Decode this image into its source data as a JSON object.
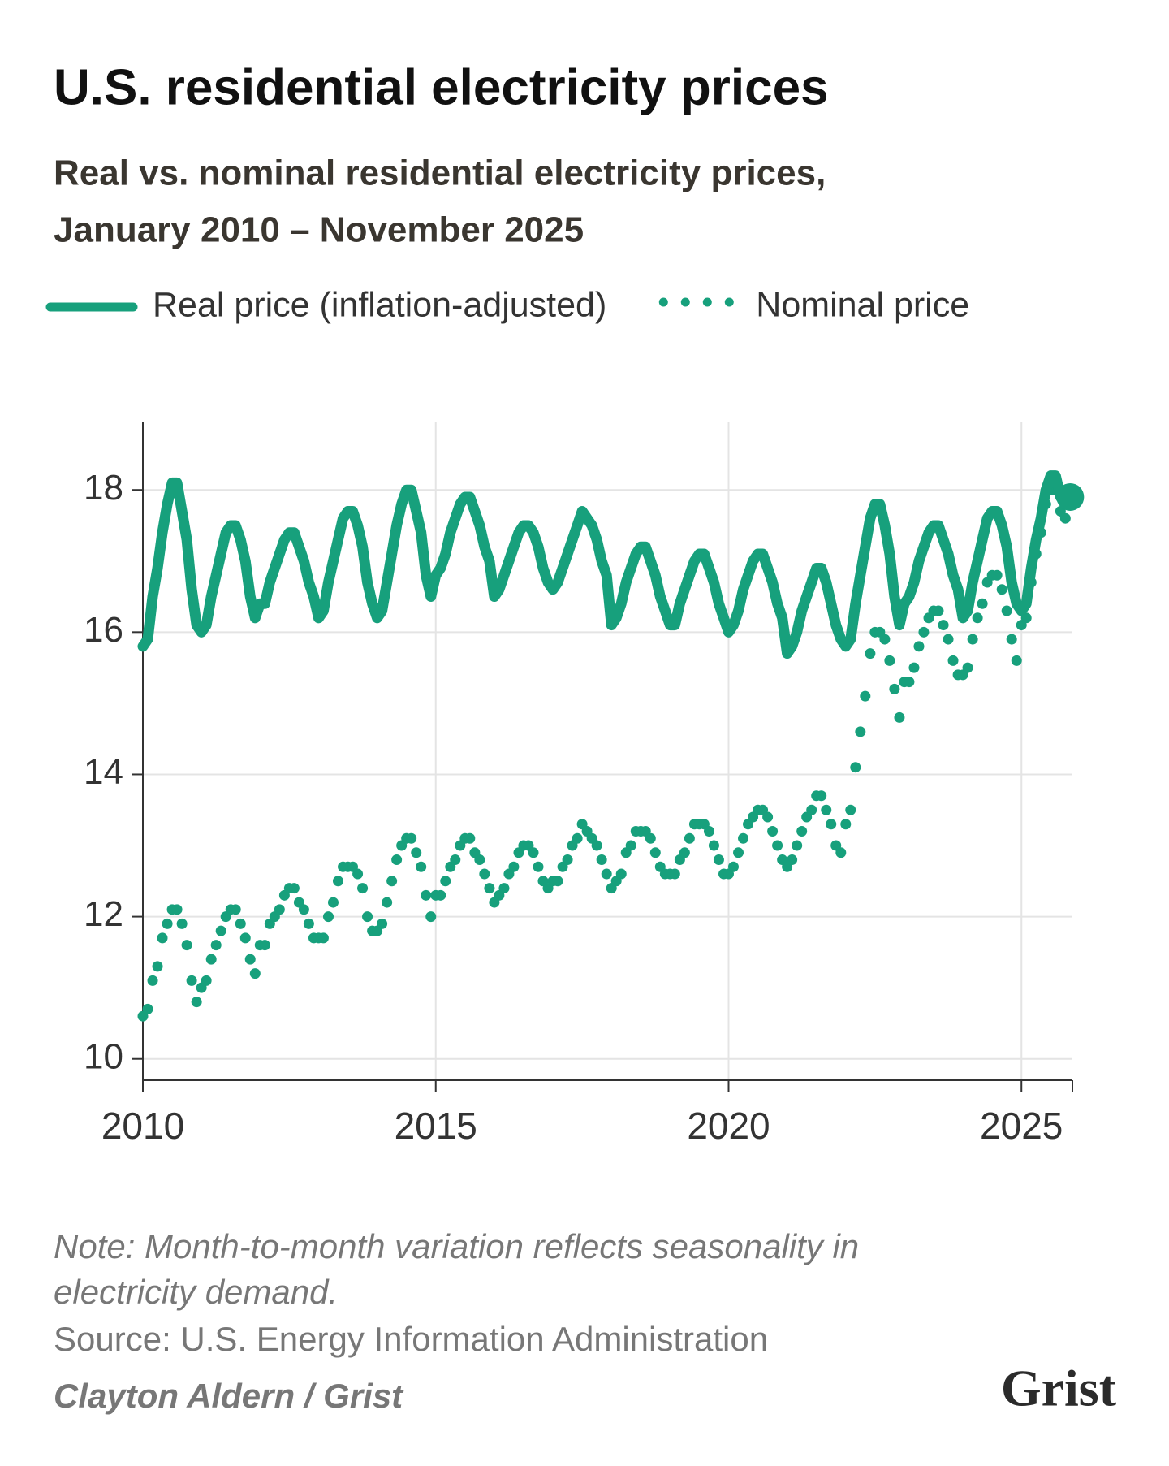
{
  "chart_data": {
    "type": "line",
    "title": "U.S. residential electricity prices",
    "subtitle": [
      "Real vs. nominal residential electricity prices,",
      "January 2010 – November 2025"
    ],
    "x": [
      2010,
      2010.083,
      2010.167,
      2010.25,
      2010.333,
      2010.417,
      2010.5,
      2010.583,
      2010.667,
      2010.75,
      2010.833,
      2010.917,
      2011,
      2011.083,
      2011.167,
      2011.25,
      2011.333,
      2011.417,
      2011.5,
      2011.583,
      2011.667,
      2011.75,
      2011.833,
      2011.917,
      2012,
      2012.083,
      2012.167,
      2012.25,
      2012.333,
      2012.417,
      2012.5,
      2012.583,
      2012.667,
      2012.75,
      2012.833,
      2012.917,
      2013,
      2013.083,
      2013.167,
      2013.25,
      2013.333,
      2013.417,
      2013.5,
      2013.583,
      2013.667,
      2013.75,
      2013.833,
      2013.917,
      2014,
      2014.083,
      2014.167,
      2014.25,
      2014.333,
      2014.417,
      2014.5,
      2014.583,
      2014.667,
      2014.75,
      2014.833,
      2014.917,
      2015,
      2015.083,
      2015.167,
      2015.25,
      2015.333,
      2015.417,
      2015.5,
      2015.583,
      2015.667,
      2015.75,
      2015.833,
      2015.917,
      2016,
      2016.083,
      2016.167,
      2016.25,
      2016.333,
      2016.417,
      2016.5,
      2016.583,
      2016.667,
      2016.75,
      2016.833,
      2016.917,
      2017,
      2017.083,
      2017.167,
      2017.25,
      2017.333,
      2017.417,
      2017.5,
      2017.583,
      2017.667,
      2017.75,
      2017.833,
      2017.917,
      2018,
      2018.083,
      2018.167,
      2018.25,
      2018.333,
      2018.417,
      2018.5,
      2018.583,
      2018.667,
      2018.75,
      2018.833,
      2018.917,
      2019,
      2019.083,
      2019.167,
      2019.25,
      2019.333,
      2019.417,
      2019.5,
      2019.583,
      2019.667,
      2019.75,
      2019.833,
      2019.917,
      2020,
      2020.083,
      2020.167,
      2020.25,
      2020.333,
      2020.417,
      2020.5,
      2020.583,
      2020.667,
      2020.75,
      2020.833,
      2020.917,
      2021,
      2021.083,
      2021.167,
      2021.25,
      2021.333,
      2021.417,
      2021.5,
      2021.583,
      2021.667,
      2021.75,
      2021.833,
      2021.917,
      2022,
      2022.083,
      2022.167,
      2022.25,
      2022.333,
      2022.417,
      2022.5,
      2022.583,
      2022.667,
      2022.75,
      2022.833,
      2022.917,
      2023,
      2023.083,
      2023.167,
      2023.25,
      2023.333,
      2023.417,
      2023.5,
      2023.583,
      2023.667,
      2023.75,
      2023.833,
      2023.917,
      2024,
      2024.083,
      2024.167,
      2024.25,
      2024.333,
      2024.417,
      2024.5,
      2024.583,
      2024.667,
      2024.75,
      2024.833,
      2024.917,
      2025,
      2025.083,
      2025.167,
      2025.25,
      2025.333,
      2025.417,
      2025.5,
      2025.583,
      2025.667,
      2025.75,
      2025.833
    ],
    "series": [
      {
        "name": "Real price (inflation-adjusted)",
        "color": "#17a07c",
        "style": "line",
        "values": [
          15.8,
          15.9,
          16.5,
          16.9,
          17.4,
          17.8,
          18.1,
          18.1,
          17.7,
          17.3,
          16.6,
          16.1,
          16.0,
          16.1,
          16.5,
          16.8,
          17.1,
          17.4,
          17.5,
          17.5,
          17.3,
          17.0,
          16.5,
          16.2,
          16.4,
          16.4,
          16.7,
          16.9,
          17.1,
          17.3,
          17.4,
          17.4,
          17.2,
          17.0,
          16.7,
          16.5,
          16.2,
          16.3,
          16.7,
          17.0,
          17.3,
          17.6,
          17.7,
          17.7,
          17.5,
          17.2,
          16.7,
          16.4,
          16.2,
          16.3,
          16.7,
          17.1,
          17.5,
          17.8,
          18.0,
          18.0,
          17.7,
          17.4,
          16.8,
          16.5,
          16.8,
          16.9,
          17.1,
          17.4,
          17.6,
          17.8,
          17.9,
          17.9,
          17.7,
          17.5,
          17.2,
          17.0,
          16.5,
          16.6,
          16.8,
          17.0,
          17.2,
          17.4,
          17.5,
          17.5,
          17.4,
          17.2,
          16.9,
          16.7,
          16.6,
          16.7,
          16.9,
          17.1,
          17.3,
          17.5,
          17.7,
          17.6,
          17.5,
          17.3,
          17.0,
          16.8,
          16.1,
          16.2,
          16.4,
          16.7,
          16.9,
          17.1,
          17.2,
          17.2,
          17.0,
          16.8,
          16.5,
          16.3,
          16.1,
          16.1,
          16.4,
          16.6,
          16.8,
          17.0,
          17.1,
          17.1,
          16.9,
          16.7,
          16.4,
          16.2,
          16.0,
          16.1,
          16.3,
          16.6,
          16.8,
          17.0,
          17.1,
          17.1,
          16.9,
          16.7,
          16.4,
          16.2,
          15.7,
          15.8,
          16.0,
          16.3,
          16.5,
          16.7,
          16.9,
          16.9,
          16.7,
          16.4,
          16.1,
          15.9,
          15.8,
          15.9,
          16.4,
          16.8,
          17.2,
          17.6,
          17.8,
          17.8,
          17.5,
          17.1,
          16.5,
          16.1,
          16.4,
          16.5,
          16.7,
          17.0,
          17.2,
          17.4,
          17.5,
          17.5,
          17.3,
          17.1,
          16.8,
          16.6,
          16.2,
          16.3,
          16.7,
          17.0,
          17.3,
          17.6,
          17.7,
          17.7,
          17.5,
          17.2,
          16.7,
          16.4,
          16.3,
          16.4,
          16.9,
          17.3,
          17.6,
          18.0,
          18.2,
          18.2,
          17.9,
          17.8,
          17.9
        ]
      },
      {
        "name": "Nominal price",
        "color": "#17a07c",
        "style": "dots",
        "values": [
          10.6,
          10.7,
          11.1,
          11.3,
          11.7,
          11.9,
          12.1,
          12.1,
          11.9,
          11.6,
          11.1,
          10.8,
          11.0,
          11.1,
          11.4,
          11.6,
          11.8,
          12.0,
          12.1,
          12.1,
          11.9,
          11.7,
          11.4,
          11.2,
          11.6,
          11.6,
          11.9,
          12.0,
          12.1,
          12.3,
          12.4,
          12.4,
          12.2,
          12.1,
          11.9,
          11.7,
          11.7,
          11.7,
          12.0,
          12.2,
          12.5,
          12.7,
          12.7,
          12.7,
          12.6,
          12.4,
          12.0,
          11.8,
          11.8,
          11.9,
          12.2,
          12.5,
          12.8,
          13.0,
          13.1,
          13.1,
          12.9,
          12.7,
          12.3,
          12.0,
          12.3,
          12.3,
          12.5,
          12.7,
          12.8,
          13.0,
          13.1,
          13.1,
          12.9,
          12.8,
          12.6,
          12.4,
          12.2,
          12.3,
          12.4,
          12.6,
          12.7,
          12.9,
          13.0,
          13.0,
          12.9,
          12.7,
          12.5,
          12.4,
          12.5,
          12.5,
          12.7,
          12.8,
          13.0,
          13.1,
          13.3,
          13.2,
          13.1,
          13.0,
          12.8,
          12.6,
          12.4,
          12.5,
          12.6,
          12.9,
          13.0,
          13.2,
          13.2,
          13.2,
          13.1,
          12.9,
          12.7,
          12.6,
          12.6,
          12.6,
          12.8,
          12.9,
          13.1,
          13.3,
          13.3,
          13.3,
          13.2,
          13.0,
          12.8,
          12.6,
          12.6,
          12.7,
          12.9,
          13.1,
          13.3,
          13.4,
          13.5,
          13.5,
          13.4,
          13.2,
          13.0,
          12.8,
          12.7,
          12.8,
          13.0,
          13.2,
          13.4,
          13.5,
          13.7,
          13.7,
          13.5,
          13.3,
          13.0,
          12.9,
          13.3,
          13.5,
          14.1,
          14.6,
          15.1,
          15.7,
          16.0,
          16.0,
          15.9,
          15.6,
          15.2,
          14.8,
          15.3,
          15.3,
          15.5,
          15.8,
          16.0,
          16.2,
          16.3,
          16.3,
          16.1,
          15.9,
          15.6,
          15.4,
          15.4,
          15.5,
          15.9,
          16.2,
          16.4,
          16.7,
          16.8,
          16.8,
          16.6,
          16.3,
          15.9,
          15.6,
          16.1,
          16.2,
          16.7,
          17.1,
          17.4,
          17.8,
          18.0,
          18.0,
          17.7,
          17.6,
          17.9
        ]
      }
    ],
    "xlim": [
      2010,
      2025.87
    ],
    "xticks": [
      2010,
      2015,
      2020,
      2025
    ],
    "ylim": [
      9.7,
      18.95
    ],
    "yticks": [
      10,
      12,
      14,
      16,
      18
    ],
    "grid": true,
    "notes": [
      "Note: Month-to-month variation reflects seasonality in",
      "electricity demand."
    ],
    "source": "Source: U.S. Energy Information Administration",
    "credit": "Clayton Aldern / Grist",
    "logo": "Grist"
  }
}
